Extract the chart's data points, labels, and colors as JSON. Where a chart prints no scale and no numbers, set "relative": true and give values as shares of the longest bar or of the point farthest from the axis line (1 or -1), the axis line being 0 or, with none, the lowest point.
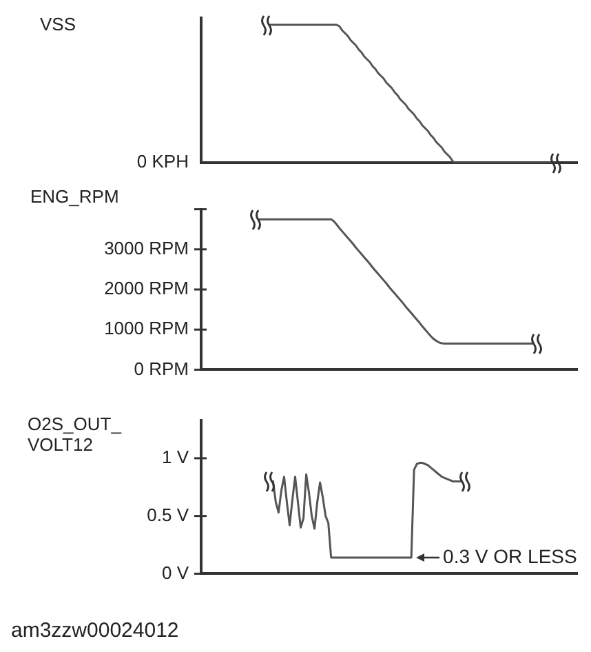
{
  "chart_data": [
    {
      "type": "line",
      "ylabel": "VSS",
      "relative": true,
      "color": "#555555",
      "categories": [
        null,
        null,
        null,
        null,
        null,
        null,
        null,
        null,
        null,
        null,
        null,
        null,
        null,
        null,
        null,
        null,
        null,
        null,
        null,
        null,
        null,
        null,
        null,
        null,
        null,
        null,
        null,
        null,
        null,
        null,
        null,
        null,
        null,
        null,
        null,
        null,
        null,
        null,
        null,
        null,
        null,
        null,
        null,
        null,
        null,
        null,
        null,
        null,
        null,
        null,
        null,
        null,
        null,
        null,
        null,
        null,
        null,
        null,
        null,
        null,
        null,
        null,
        null,
        null,
        null,
        null,
        null,
        null,
        null,
        null,
        null,
        null,
        null,
        null,
        null,
        null,
        null,
        null,
        null,
        null,
        null,
        null,
        null,
        null,
        null,
        null,
        null,
        null,
        null,
        null,
        null,
        null,
        null,
        null,
        null,
        null,
        null,
        null,
        null,
        null,
        null,
        null,
        null,
        null,
        null,
        null,
        null,
        null,
        null,
        null,
        null,
        null,
        null,
        null,
        null,
        null,
        null,
        null,
        null,
        null,
        null,
        null,
        null,
        null,
        null,
        null,
        null,
        null,
        null,
        null,
        null,
        null,
        null,
        null,
        null,
        null,
        null
      ],
      "values": [
        null,
        null,
        null,
        null,
        null,
        null,
        null,
        null,
        null,
        null,
        null,
        null,
        null,
        null,
        null,
        null,
        null,
        null,
        null,
        null,
        null,
        null,
        null,
        null,
        null,
        1,
        1,
        1,
        1,
        1,
        1,
        1,
        1,
        1,
        1,
        1,
        1,
        1,
        1,
        1,
        1,
        1,
        1,
        1,
        1,
        1,
        1,
        1,
        1,
        1,
        0.99,
        0.96,
        0.94,
        0.92,
        0.89,
        0.87,
        0.85,
        0.82,
        0.8,
        0.77,
        0.75,
        0.73,
        0.7,
        0.68,
        0.65,
        0.63,
        0.61,
        0.58,
        0.56,
        0.54,
        0.51,
        0.49,
        0.46,
        0.44,
        0.42,
        0.39,
        0.37,
        0.35,
        0.32,
        0.3,
        0.27,
        0.25,
        0.23,
        0.2,
        0.18,
        0.15,
        0.13,
        0.11,
        0.08,
        0.06,
        0.04,
        0.01,
        0,
        0,
        0,
        0,
        0,
        0,
        0,
        0,
        0,
        0,
        0,
        0,
        0,
        0,
        0,
        0,
        0,
        0,
        0,
        0,
        0,
        0,
        0,
        0,
        0,
        0,
        0,
        0,
        0,
        0,
        0,
        0,
        0,
        0,
        0,
        0,
        null,
        null,
        null,
        null,
        null,
        null,
        null,
        null,
        null
      ],
      "annotations": [
        "0 KPH"
      ]
    },
    {
      "type": "line",
      "ylabel": "ENG_RPM",
      "color": "#555555",
      "tick_labels": "y",
      "ylim": [
        0,
        4000
      ],
      "yticks": [
        {
          "value": 0,
          "label": "0 RPM"
        },
        {
          "value": 1000,
          "label": "1000 RPM"
        },
        {
          "value": 2000,
          "label": "2000 RPM"
        },
        {
          "value": 3000,
          "label": "3000 RPM"
        },
        {
          "value": 4000,
          "label": null
        }
      ],
      "categories": [
        null,
        null,
        null,
        null,
        null,
        null,
        null,
        null,
        null,
        null,
        null,
        null,
        null,
        null,
        null,
        null,
        null,
        null,
        null,
        null,
        null,
        null,
        null,
        null,
        null,
        null,
        null,
        null,
        null,
        null,
        null,
        null,
        null,
        null,
        null,
        null,
        null,
        null,
        null,
        null,
        null,
        null,
        null,
        null,
        null,
        null,
        null,
        null,
        null,
        null,
        null,
        null,
        null,
        null,
        null,
        null,
        null,
        null,
        null,
        null,
        null,
        null,
        null,
        null,
        null,
        null,
        null,
        null,
        null,
        null,
        null,
        null,
        null,
        null,
        null,
        null,
        null,
        null,
        null,
        null,
        null,
        null,
        null,
        null,
        null,
        null,
        null,
        null,
        null,
        null,
        null,
        null,
        null,
        null,
        null,
        null,
        null,
        null,
        null,
        null,
        null,
        null,
        null,
        null,
        null,
        null,
        null,
        null,
        null,
        null,
        null,
        null,
        null,
        null,
        null,
        null,
        null,
        null,
        null,
        null,
        null,
        null,
        null,
        null,
        null,
        null,
        null,
        null,
        null,
        null,
        null,
        null,
        null,
        null,
        null,
        null,
        null
      ],
      "values": [
        null,
        null,
        null,
        null,
        null,
        null,
        null,
        null,
        null,
        null,
        null,
        null,
        null,
        null,
        null,
        null,
        null,
        null,
        null,
        null,
        null,
        3750,
        3750,
        3750,
        3750,
        3750,
        3750,
        3750,
        3750,
        3750,
        3750,
        3750,
        3750,
        3750,
        3750,
        3750,
        3750,
        3750,
        3750,
        3750,
        3750,
        3750,
        3750,
        3750,
        3750,
        3750,
        3750,
        3750,
        3700,
        3620,
        3530,
        3450,
        3370,
        3290,
        3210,
        3130,
        3040,
        2960,
        2880,
        2800,
        2720,
        2640,
        2550,
        2470,
        2390,
        2310,
        2230,
        2150,
        2060,
        1980,
        1900,
        1820,
        1740,
        1660,
        1570,
        1490,
        1410,
        1330,
        1250,
        1170,
        1080,
        1000,
        920,
        840,
        770,
        720,
        680,
        660,
        650,
        650,
        650,
        650,
        650,
        650,
        650,
        650,
        650,
        650,
        650,
        650,
        650,
        650,
        650,
        650,
        650,
        650,
        650,
        650,
        650,
        650,
        650,
        650,
        650,
        650,
        650,
        650,
        650,
        650,
        650,
        650,
        650,
        null,
        null,
        null,
        null,
        null,
        null,
        null,
        null,
        null,
        null,
        null,
        null,
        null,
        null,
        null,
        null
      ]
    },
    {
      "type": "line",
      "ylabel": "O2S_OUT_VOLT12",
      "color": "#555555",
      "tick_labels": "y",
      "ylim": [
        0,
        1.33
      ],
      "yticks": [
        {
          "value": 0,
          "label": "0 V"
        },
        {
          "value": 0.5,
          "label": "0.5 V"
        },
        {
          "value": 1,
          "label": "1 V"
        }
      ],
      "categories": [
        null,
        null,
        null,
        null,
        null,
        null,
        null,
        null,
        null,
        null,
        null,
        null,
        null,
        null,
        null,
        null,
        null,
        null,
        null,
        null,
        null,
        null,
        null,
        null,
        null,
        null,
        null,
        null,
        null,
        null,
        null,
        null,
        null,
        null,
        null,
        null,
        null,
        null,
        null,
        null,
        null,
        null,
        null,
        null,
        null,
        null,
        null,
        null,
        null,
        null,
        null,
        null,
        null,
        null,
        null,
        null,
        null,
        null,
        null,
        null,
        null,
        null,
        null,
        null,
        null,
        null,
        null,
        null,
        null,
        null,
        null,
        null,
        null,
        null,
        null,
        null,
        null,
        null,
        null,
        null,
        null,
        null,
        null,
        null,
        null,
        null,
        null,
        null,
        null,
        null,
        null,
        null,
        null,
        null,
        null,
        null,
        null,
        null,
        null,
        null,
        null,
        null,
        null,
        null,
        null,
        null,
        null,
        null,
        null,
        null,
        null,
        null,
        null,
        null,
        null,
        null,
        null,
        null,
        null,
        null,
        null,
        null,
        null,
        null,
        null,
        null,
        null,
        null,
        null,
        null,
        null,
        null,
        null,
        null,
        null,
        null,
        null
      ],
      "values": [
        null,
        null,
        null,
        null,
        null,
        null,
        null,
        null,
        null,
        null,
        null,
        null,
        null,
        null,
        null,
        null,
        null,
        null,
        null,
        null,
        null,
        null,
        null,
        null,
        null,
        null,
        0.8,
        0.62,
        0.53,
        0.72,
        0.84,
        0.62,
        0.42,
        0.64,
        0.84,
        0.62,
        0.4,
        0.48,
        0.86,
        0.7,
        0.5,
        0.39,
        0.62,
        0.79,
        0.66,
        0.5,
        0.44,
        0.14,
        0.14,
        0.14,
        0.14,
        0.14,
        0.14,
        0.14,
        0.14,
        0.14,
        0.14,
        0.14,
        0.14,
        0.14,
        0.14,
        0.14,
        0.14,
        0.14,
        0.14,
        0.14,
        0.14,
        0.14,
        0.14,
        0.14,
        0.14,
        0.14,
        0.14,
        0.14,
        0.14,
        0.14,
        0.14,
        0.9,
        0.95,
        0.96,
        0.96,
        0.95,
        0.94,
        0.92,
        0.9,
        0.88,
        0.86,
        0.84,
        0.83,
        0.82,
        0.81,
        0.8,
        0.8,
        0.8,
        0.8,
        null,
        null,
        null,
        null,
        null,
        null,
        null,
        null,
        null,
        null,
        null,
        null,
        null,
        null,
        null,
        null,
        null,
        null,
        null,
        null,
        null,
        null,
        null,
        null,
        null,
        null,
        null,
        null,
        null,
        null,
        null,
        null,
        null,
        null,
        null,
        null,
        null,
        null,
        null,
        null,
        null,
        null
      ],
      "annotations": [
        "0.3 V OR LESS",
        "am3zzw00024012"
      ]
    }
  ]
}
